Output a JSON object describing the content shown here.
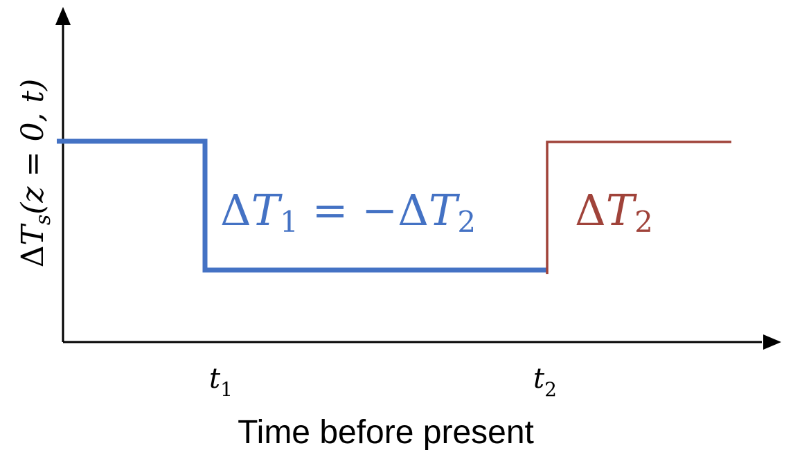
{
  "diagram": {
    "y_axis_label": {
      "delta": "Δ",
      "var": "T",
      "sub": "s",
      "args": "(z = 0, t)"
    },
    "x_axis_label": "Time before present",
    "ticks": [
      {
        "var": "t",
        "sub": "1"
      },
      {
        "var": "t",
        "sub": "2"
      }
    ],
    "blue_label": {
      "lhs_delta": "Δ",
      "lhs_var": "T",
      "lhs_sub": "1",
      "eq": " = −",
      "rhs_delta": "Δ",
      "rhs_var": "T",
      "rhs_sub": "2"
    },
    "red_label": {
      "delta": "Δ",
      "var": "T",
      "sub": "2"
    },
    "colors": {
      "axis": "#000000",
      "blue": "#4472C4",
      "red": "#A0433A"
    }
  }
}
